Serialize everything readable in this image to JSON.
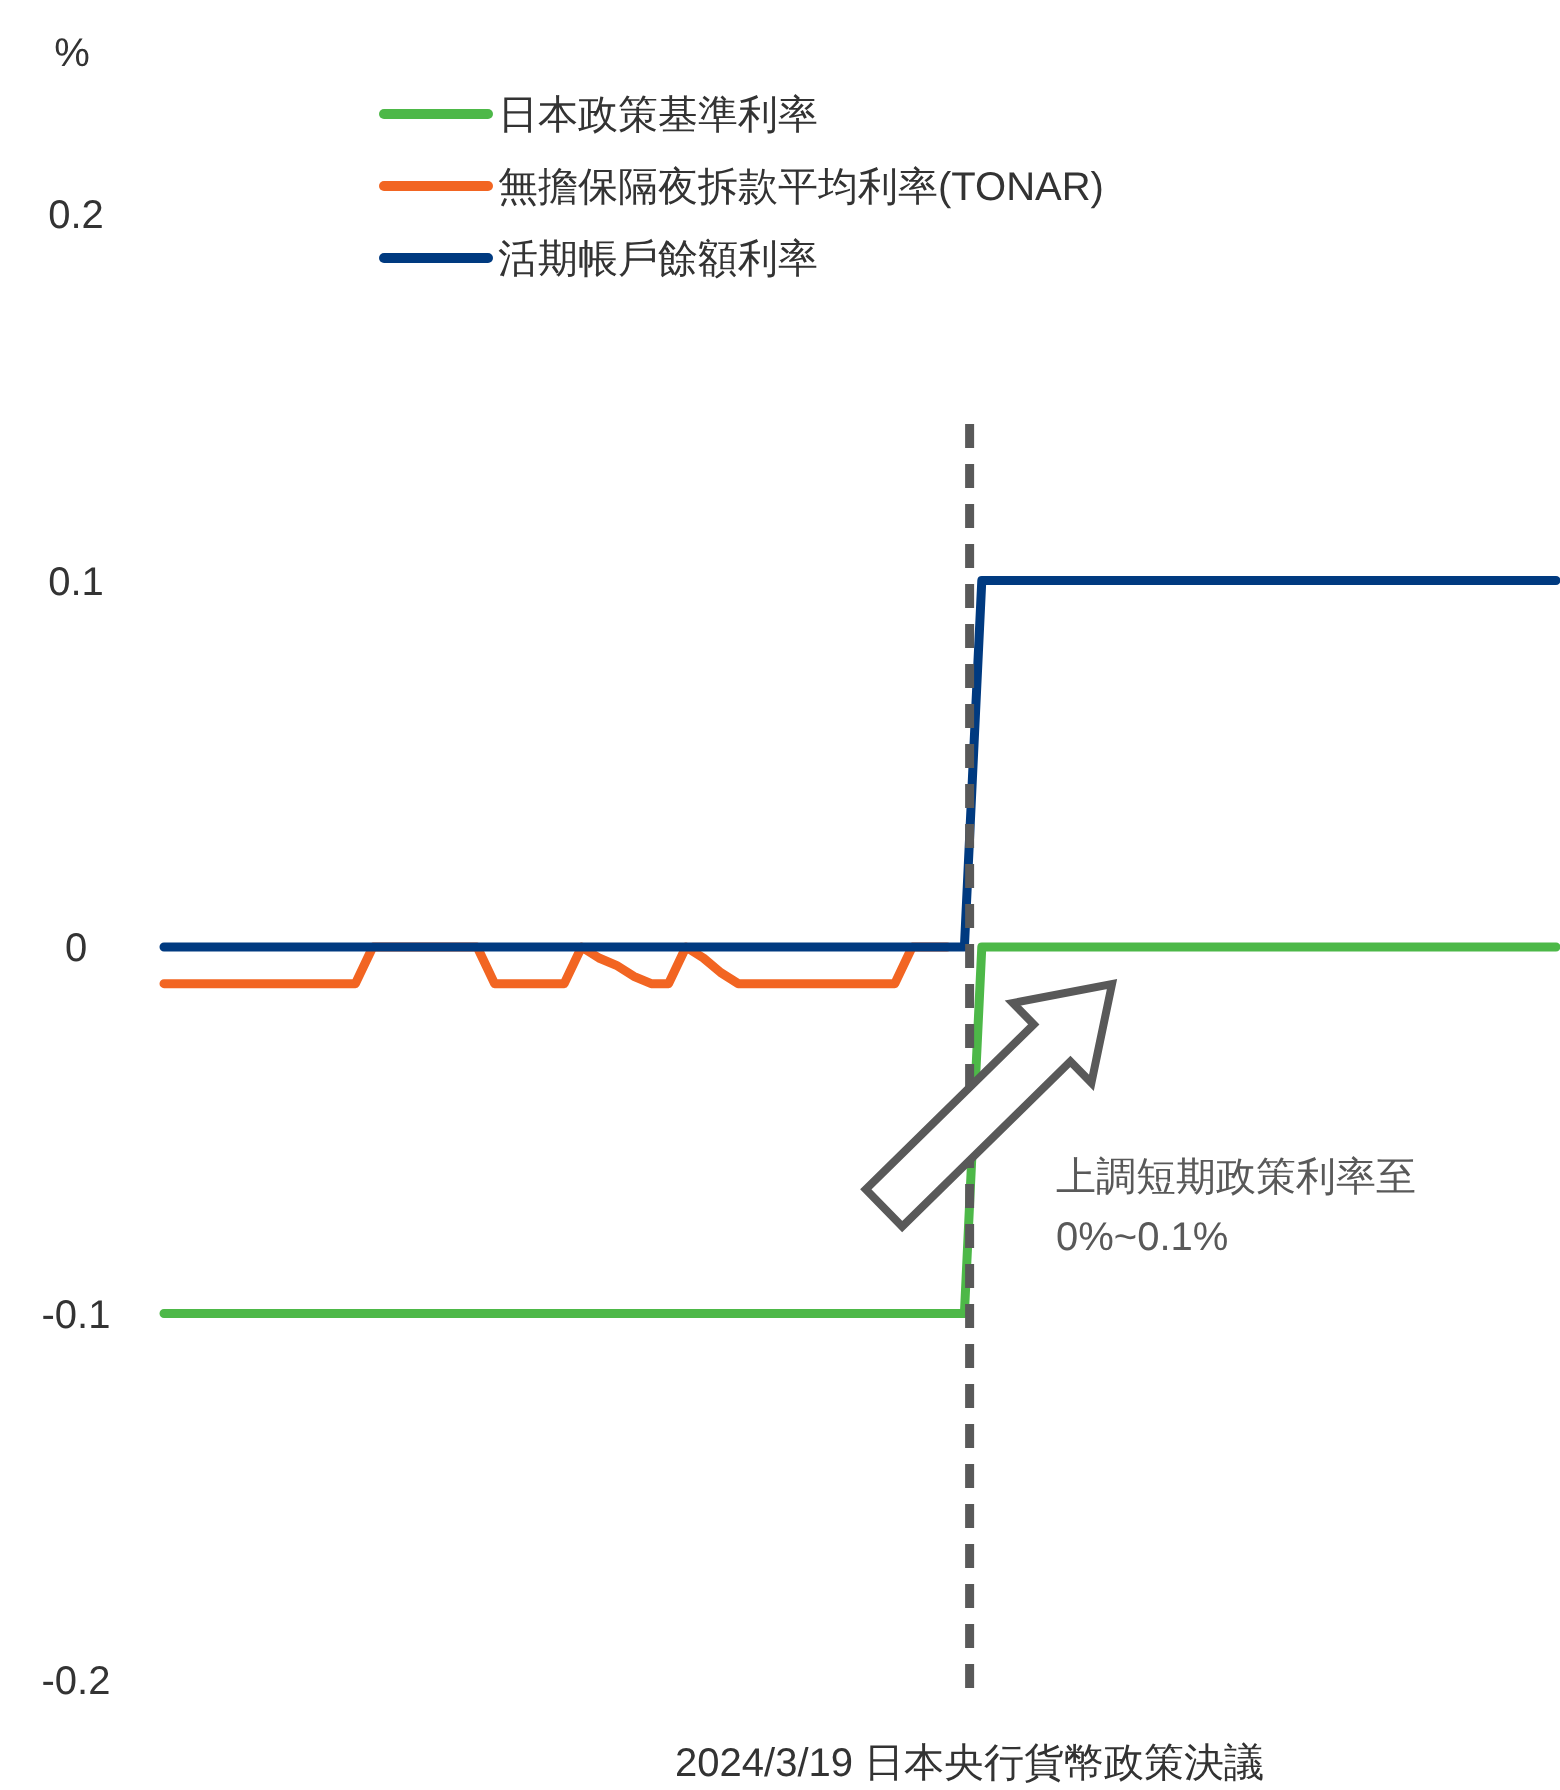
{
  "chart_data": {
    "type": "line",
    "ylabel": "%",
    "categories": [
      null,
      null,
      null,
      null,
      null,
      null,
      null,
      null,
      null,
      null,
      null,
      null,
      null,
      null,
      null,
      null,
      null,
      null,
      null,
      null,
      null,
      null,
      null,
      null,
      null,
      null,
      null,
      null,
      null,
      null,
      null,
      null,
      null,
      null,
      null,
      null,
      null,
      null,
      null,
      null,
      null,
      null,
      null,
      null,
      null,
      null,
      null,
      null,
      null,
      null,
      null,
      null,
      null,
      null,
      null,
      null,
      null,
      null,
      null,
      null,
      null,
      null,
      null,
      null,
      null,
      null,
      null,
      null,
      null,
      null,
      null,
      null,
      null,
      null,
      null,
      null,
      null,
      null,
      null,
      null,
      null
    ],
    "series": [
      {
        "name": "日本政策基準利率",
        "color": "#4db848",
        "values": [
          -0.1,
          -0.1,
          -0.1,
          -0.1,
          -0.1,
          -0.1,
          -0.1,
          -0.1,
          -0.1,
          -0.1,
          -0.1,
          -0.1,
          -0.1,
          -0.1,
          -0.1,
          -0.1,
          -0.1,
          -0.1,
          -0.1,
          -0.1,
          -0.1,
          -0.1,
          -0.1,
          -0.1,
          -0.1,
          -0.1,
          -0.1,
          -0.1,
          -0.1,
          -0.1,
          -0.1,
          -0.1,
          -0.1,
          -0.1,
          -0.1,
          -0.1,
          -0.1,
          -0.1,
          -0.1,
          -0.1,
          -0.1,
          -0.1,
          -0.1,
          -0.1,
          -0.1,
          -0.1,
          -0.1,
          0,
          0,
          0,
          0,
          0,
          0,
          0,
          0,
          0,
          0,
          0,
          0,
          0,
          0,
          0,
          0,
          0,
          0,
          0,
          0,
          0,
          0,
          0,
          0,
          0,
          0,
          0,
          0,
          0,
          0,
          0,
          0,
          0,
          0
        ]
      },
      {
        "name": "無擔保隔夜拆款平均利率(TONAR)",
        "color": "#f26522",
        "values": [
          -0.01,
          -0.01,
          -0.01,
          -0.01,
          -0.01,
          -0.01,
          -0.01,
          -0.01,
          -0.01,
          -0.01,
          -0.01,
          -0.01,
          0,
          0,
          0,
          0,
          0,
          0,
          0,
          -0.01,
          -0.01,
          -0.01,
          -0.01,
          -0.01,
          0,
          -0.003,
          -0.005,
          -0.008,
          -0.01,
          -0.01,
          0,
          -0.003,
          -0.007,
          -0.01,
          -0.01,
          -0.01,
          -0.01,
          -0.01,
          -0.01,
          -0.01,
          -0.01,
          -0.01,
          -0.01,
          0,
          0,
          0,
          null,
          null,
          null,
          null,
          null,
          null,
          null,
          null,
          null,
          null,
          null,
          null,
          null,
          null,
          null,
          null,
          null,
          null,
          null,
          null,
          null,
          null,
          null,
          null,
          null,
          null,
          null,
          null,
          null,
          null,
          null,
          null,
          null,
          null,
          null
        ]
      },
      {
        "name": "活期帳戶餘額利率",
        "color": "#003a80",
        "values": [
          0,
          0,
          0,
          0,
          0,
          0,
          0,
          0,
          0,
          0,
          0,
          0,
          0,
          0,
          0,
          0,
          0,
          0,
          0,
          0,
          0,
          0,
          0,
          0,
          0,
          0,
          0,
          0,
          0,
          0,
          0,
          0,
          0,
          0,
          0,
          0,
          0,
          0,
          0,
          0,
          0,
          0,
          0,
          0,
          0,
          0,
          0,
          0.1,
          0.1,
          0.1,
          0.1,
          0.1,
          0.1,
          0.1,
          0.1,
          0.1,
          0.1,
          0.1,
          0.1,
          0.1,
          0.1,
          0.1,
          0.1,
          0.1,
          0.1,
          0.1,
          0.1,
          0.1,
          0.1,
          0.1,
          0.1,
          0.1,
          0.1,
          0.1,
          0.1,
          0.1,
          0.1,
          0.1,
          0.1,
          0.1,
          0.1
        ]
      }
    ],
    "ylim": [
      -0.2,
      0.2
    ],
    "yticks": [
      {
        "value": 0.2,
        "label": "0.2"
      },
      {
        "value": 0.1,
        "label": "0.1"
      },
      {
        "value": 0,
        "label": "0"
      },
      {
        "value": -0.1,
        "label": "-0.1"
      },
      {
        "value": -0.2,
        "label": "-0.2"
      }
    ],
    "tick_labels": "y",
    "grid": false,
    "legend": "top",
    "marker": "none",
    "line_style": "solid",
    "annotations": [
      "上調短期政策利率至0%~0.1%",
      "2024/3/19 日本央行貨幣政策決議"
    ]
  }
}
